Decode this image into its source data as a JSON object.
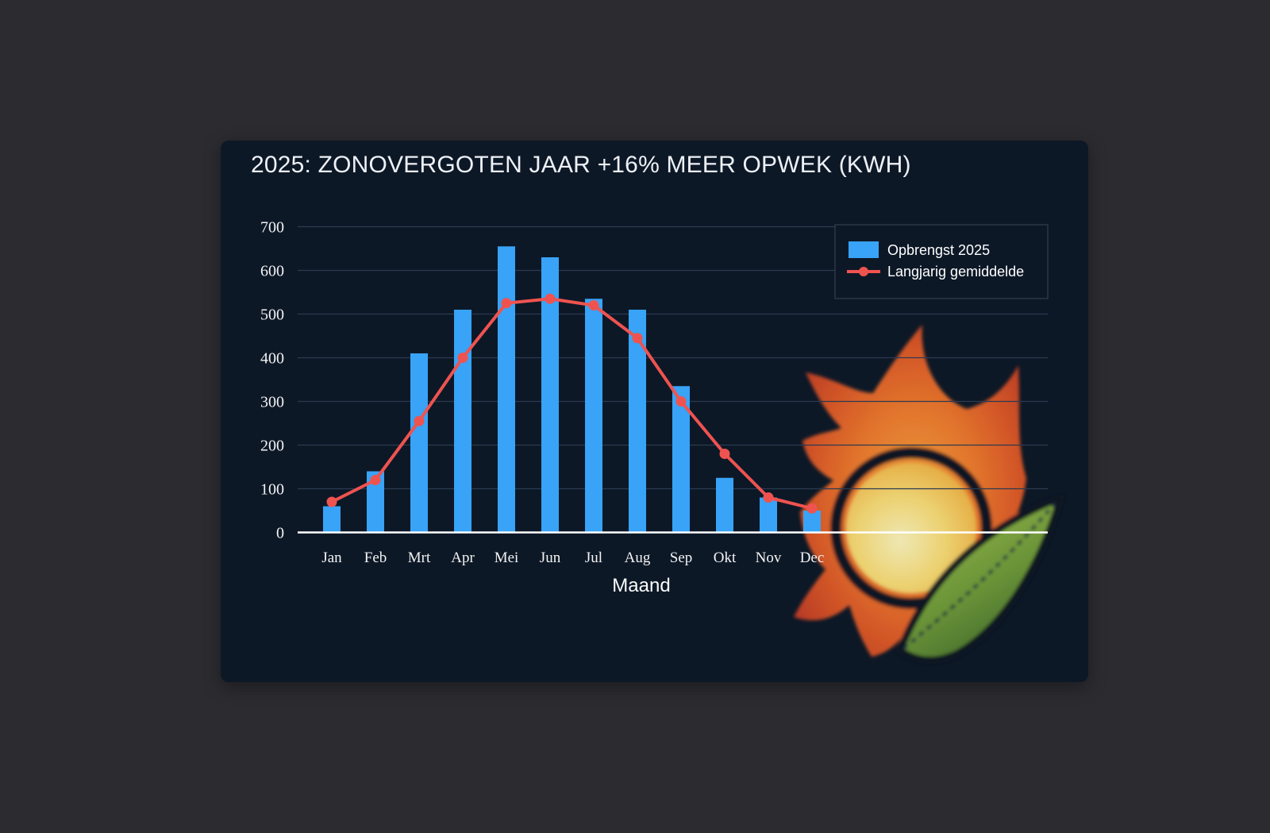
{
  "page": {
    "background": "#2b2b30"
  },
  "colors": {
    "panel_background": "#0d1827",
    "grid": "#2c3a50",
    "axis_line": "#ffffff",
    "tick_text": "#f3f3f3",
    "title_text": "#eef1f6",
    "legend_border": "#3a4456",
    "bar_blue": "#38a3f7",
    "line_red": "#ef5350"
  },
  "logo": {
    "name": "sun-flame-leaf-logo",
    "flame_color": "#dd5a28",
    "sun_color": "#f8dc76",
    "leaf_color": "#4e7c30"
  },
  "chart_data": {
    "type": "bar",
    "title": "2025: ZONOVERGOTEN JAAR +16% MEER OPWEK (KWH)",
    "xlabel": "Maand",
    "ylabel": "",
    "categories": [
      "Jan",
      "Feb",
      "Mrt",
      "Apr",
      "Mei",
      "Jun",
      "Jul",
      "Aug",
      "Sep",
      "Okt",
      "Nov",
      "Dec"
    ],
    "series": [
      {
        "name": "Opbrengst 2025",
        "type": "bar",
        "color": "#38a3f7",
        "values": [
          60,
          140,
          410,
          510,
          655,
          630,
          535,
          510,
          335,
          125,
          80,
          50
        ]
      },
      {
        "name": "Langjarig gemiddelde",
        "type": "line",
        "color": "#ef5350",
        "values": [
          70,
          120,
          255,
          400,
          525,
          535,
          520,
          445,
          300,
          180,
          80,
          55
        ]
      }
    ],
    "ylim": [
      0,
      700
    ],
    "ytick_step": 100,
    "grid": true,
    "legend_position": "top-right"
  }
}
